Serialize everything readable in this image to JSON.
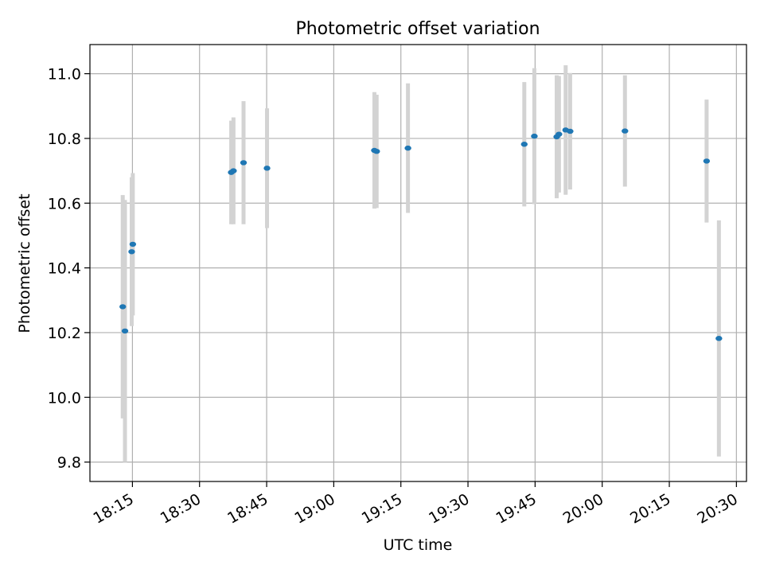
{
  "chart_data": {
    "type": "scatter",
    "title": "Photometric offset variation",
    "xlabel": "UTC time",
    "ylabel": "Photometric offset",
    "xlim": [
      "18:05:30",
      "20:32:15"
    ],
    "ylim": [
      9.74,
      11.09
    ],
    "grid": true,
    "x_ticks": [
      "18:15",
      "18:30",
      "18:45",
      "19:00",
      "19:15",
      "19:30",
      "19:45",
      "20:00",
      "20:15",
      "20:30"
    ],
    "y_ticks": [
      "9.8",
      "10.0",
      "10.2",
      "10.4",
      "10.6",
      "10.8",
      "11.0"
    ],
    "colors": {
      "point": "#1f77b4",
      "errorbar": "#d3d3d3",
      "grid": "#b0b0b0"
    },
    "series": [
      {
        "points": [
          {
            "x": "18:12:50",
            "y": 10.28,
            "yerr": 0.345
          },
          {
            "x": "18:13:20",
            "y": 10.205,
            "yerr": 0.405
          },
          {
            "x": "18:14:50",
            "y": 10.45,
            "yerr": 0.23
          },
          {
            "x": "18:15:05",
            "y": 10.473,
            "yerr": 0.22
          },
          {
            "x": "18:37:05",
            "y": 10.695,
            "yerr": 0.16
          },
          {
            "x": "18:37:35",
            "y": 10.7,
            "yerr": 0.165
          },
          {
            "x": "18:39:50",
            "y": 10.725,
            "yerr": 0.19
          },
          {
            "x": "18:45:05",
            "y": 10.708,
            "yerr": 0.185
          },
          {
            "x": "19:09:05",
            "y": 10.763,
            "yerr": 0.18
          },
          {
            "x": "19:09:35",
            "y": 10.76,
            "yerr": 0.175
          },
          {
            "x": "19:16:35",
            "y": 10.77,
            "yerr": 0.2
          },
          {
            "x": "19:42:35",
            "y": 10.782,
            "yerr": 0.192
          },
          {
            "x": "19:44:50",
            "y": 10.807,
            "yerr": 0.21
          },
          {
            "x": "19:49:50",
            "y": 10.805,
            "yerr": 0.19
          },
          {
            "x": "19:50:20",
            "y": 10.813,
            "yerr": 0.18
          },
          {
            "x": "19:51:50",
            "y": 10.826,
            "yerr": 0.2
          },
          {
            "x": "19:52:50",
            "y": 10.822,
            "yerr": 0.18
          },
          {
            "x": "20:05:05",
            "y": 10.823,
            "yerr": 0.172
          },
          {
            "x": "20:23:20",
            "y": 10.73,
            "yerr": 0.19
          },
          {
            "x": "20:26:05",
            "y": 10.182,
            "yerr": 0.365
          }
        ]
      }
    ]
  }
}
